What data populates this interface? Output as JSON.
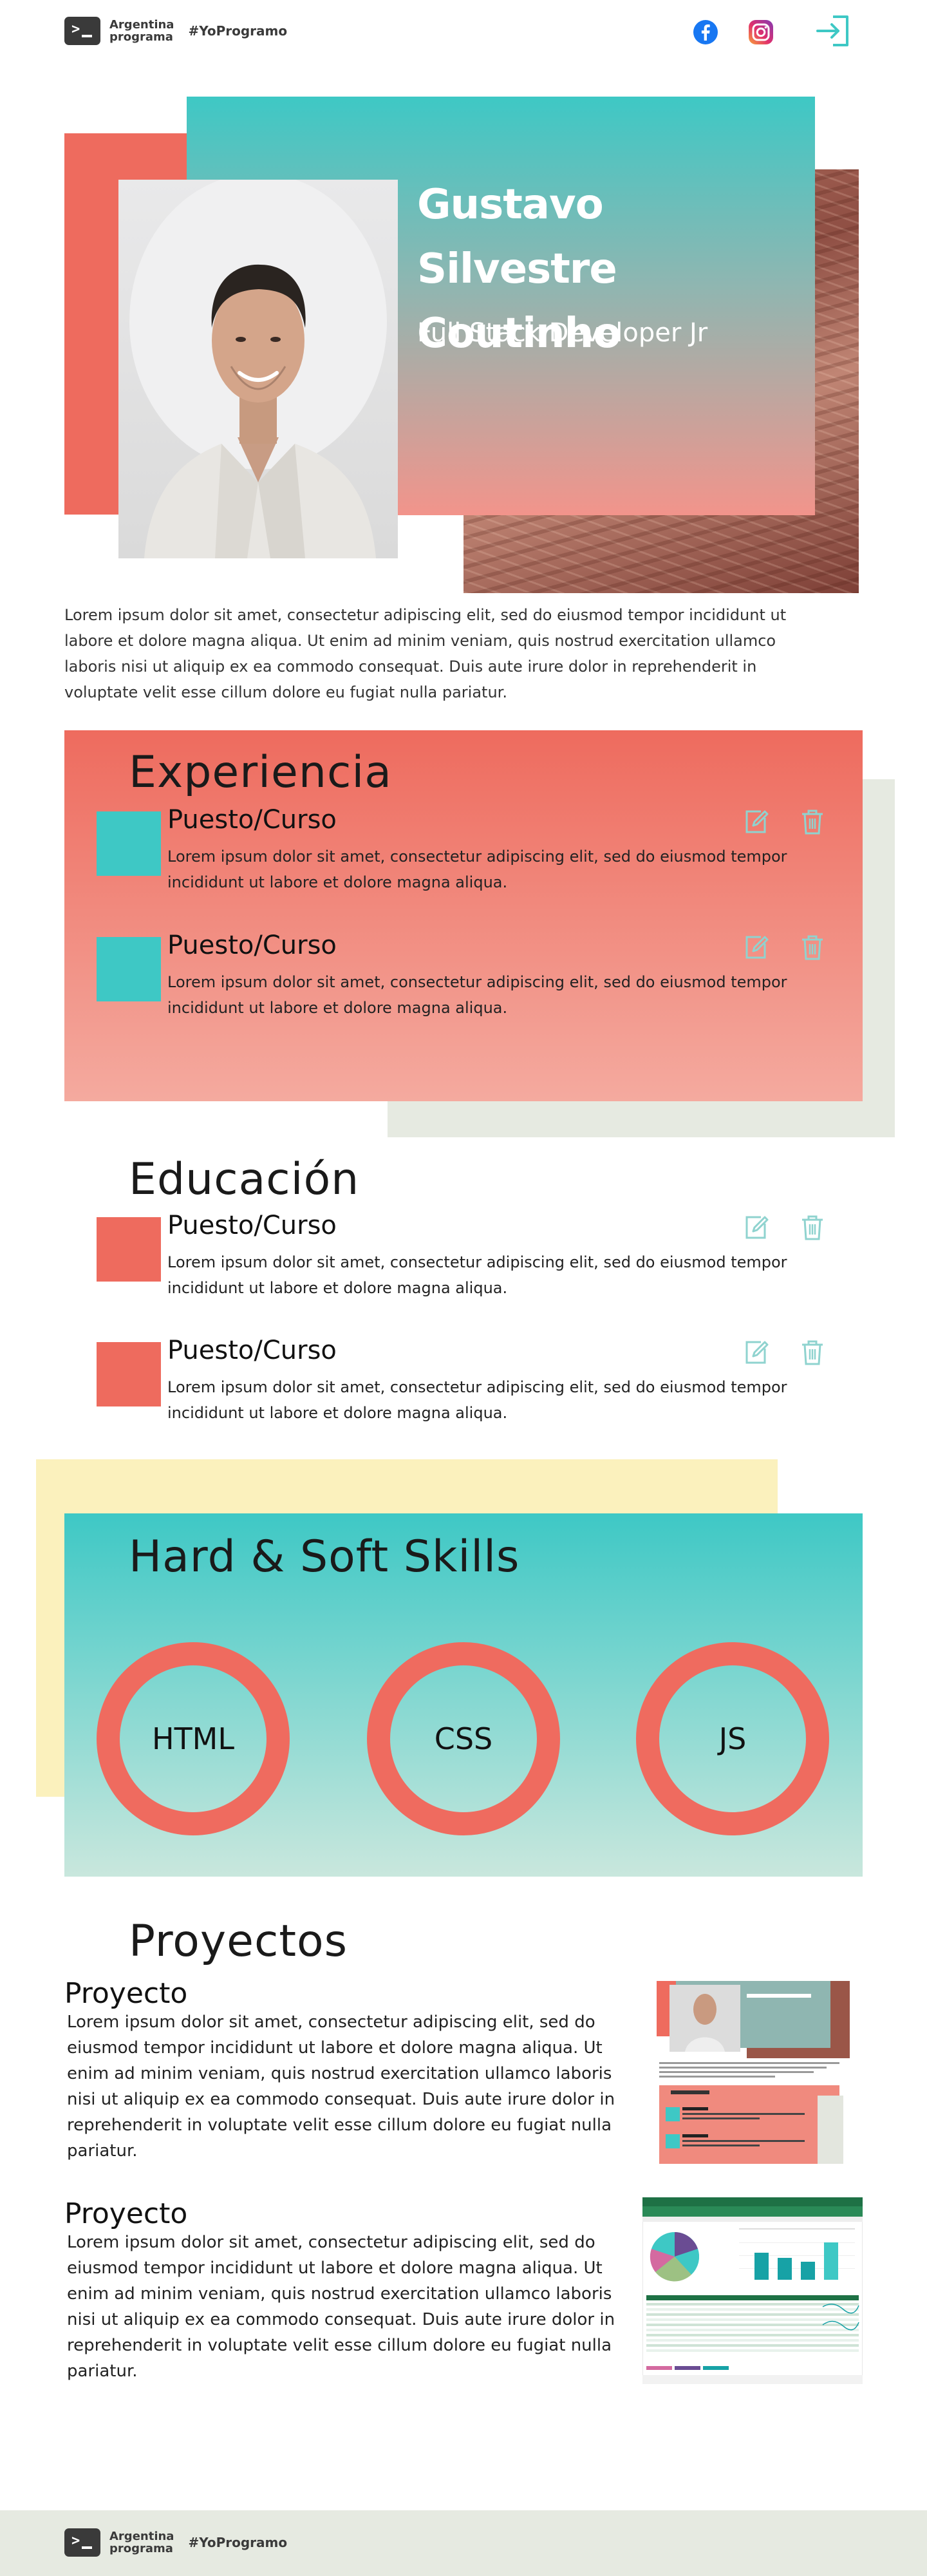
{
  "brand": {
    "logo_line1": "Argentina",
    "logo_line2": "programa",
    "hashtag": "#YoProgramo"
  },
  "header": {
    "icons": [
      "facebook-icon",
      "instagram-icon",
      "login-icon"
    ]
  },
  "hero": {
    "name": "Gustavo Silvestre Coutinho",
    "role": "Full Stack Developer Jr",
    "about": "Lorem ipsum dolor sit amet, consectetur adipiscing elit, sed do eiusmod tempor incididunt ut labore et dolore magna aliqua. Ut enim ad minim veniam, quis nostrud exercitation ullamco laboris nisi ut aliquip ex ea commodo consequat. Duis aute irure dolor in reprehenderit in voluptate velit esse cillum dolore eu fugiat nulla pariatur."
  },
  "experience": {
    "title": "Experiencia",
    "items": [
      {
        "title": "Puesto/Curso",
        "description": "Lorem ipsum dolor sit amet, consectetur adipiscing elit, sed do eiusmod tempor incididunt ut labore et dolore magna aliqua."
      },
      {
        "title": "Puesto/Curso",
        "description": "Lorem ipsum dolor sit amet, consectetur adipiscing elit, sed do eiusmod tempor incididunt ut labore et dolore magna aliqua."
      }
    ]
  },
  "education": {
    "title": "Educación",
    "items": [
      {
        "title": "Puesto/Curso",
        "description": "Lorem ipsum dolor sit amet, consectetur adipiscing elit, sed do eiusmod tempor incididunt ut labore et dolore magna aliqua."
      },
      {
        "title": "Puesto/Curso",
        "description": "Lorem ipsum dolor sit amet, consectetur adipiscing elit, sed do eiusmod tempor incididunt ut labore et dolore magna aliqua."
      }
    ]
  },
  "skills": {
    "title": "Hard & Soft Skills",
    "items": [
      "HTML",
      "CSS",
      "JS"
    ]
  },
  "projects": {
    "title": "Proyectos",
    "items": [
      {
        "title": "Proyecto",
        "description": "Lorem ipsum dolor sit amet, consectetur adipiscing elit, sed do eiusmod tempor incididunt ut labore et dolore magna aliqua. Ut enim ad minim veniam, quis nostrud exercitation ullamco laboris nisi ut aliquip ex ea commodo consequat. Duis aute irure dolor in reprehenderit in voluptate velit esse cillum dolore eu fugiat nulla pariatur."
      },
      {
        "title": "Proyecto",
        "description": "Lorem ipsum dolor sit amet, consectetur adipiscing elit, sed do eiusmod tempor incididunt ut labore et dolore magna aliqua. Ut enim ad minim veniam, quis nostrud exercitation ullamco laboris nisi ut aliquip ex ea commodo consequat. Duis aute irure dolor in reprehenderit in voluptate velit esse cillum dolore eu fugiat nulla pariatur."
      }
    ]
  },
  "colors": {
    "teal": "#3ec8c5",
    "coral": "#ee6b5e",
    "sage": "#e6eae1",
    "yellow": "#fbf1bd",
    "icon_teal": "#8fd3cf"
  }
}
